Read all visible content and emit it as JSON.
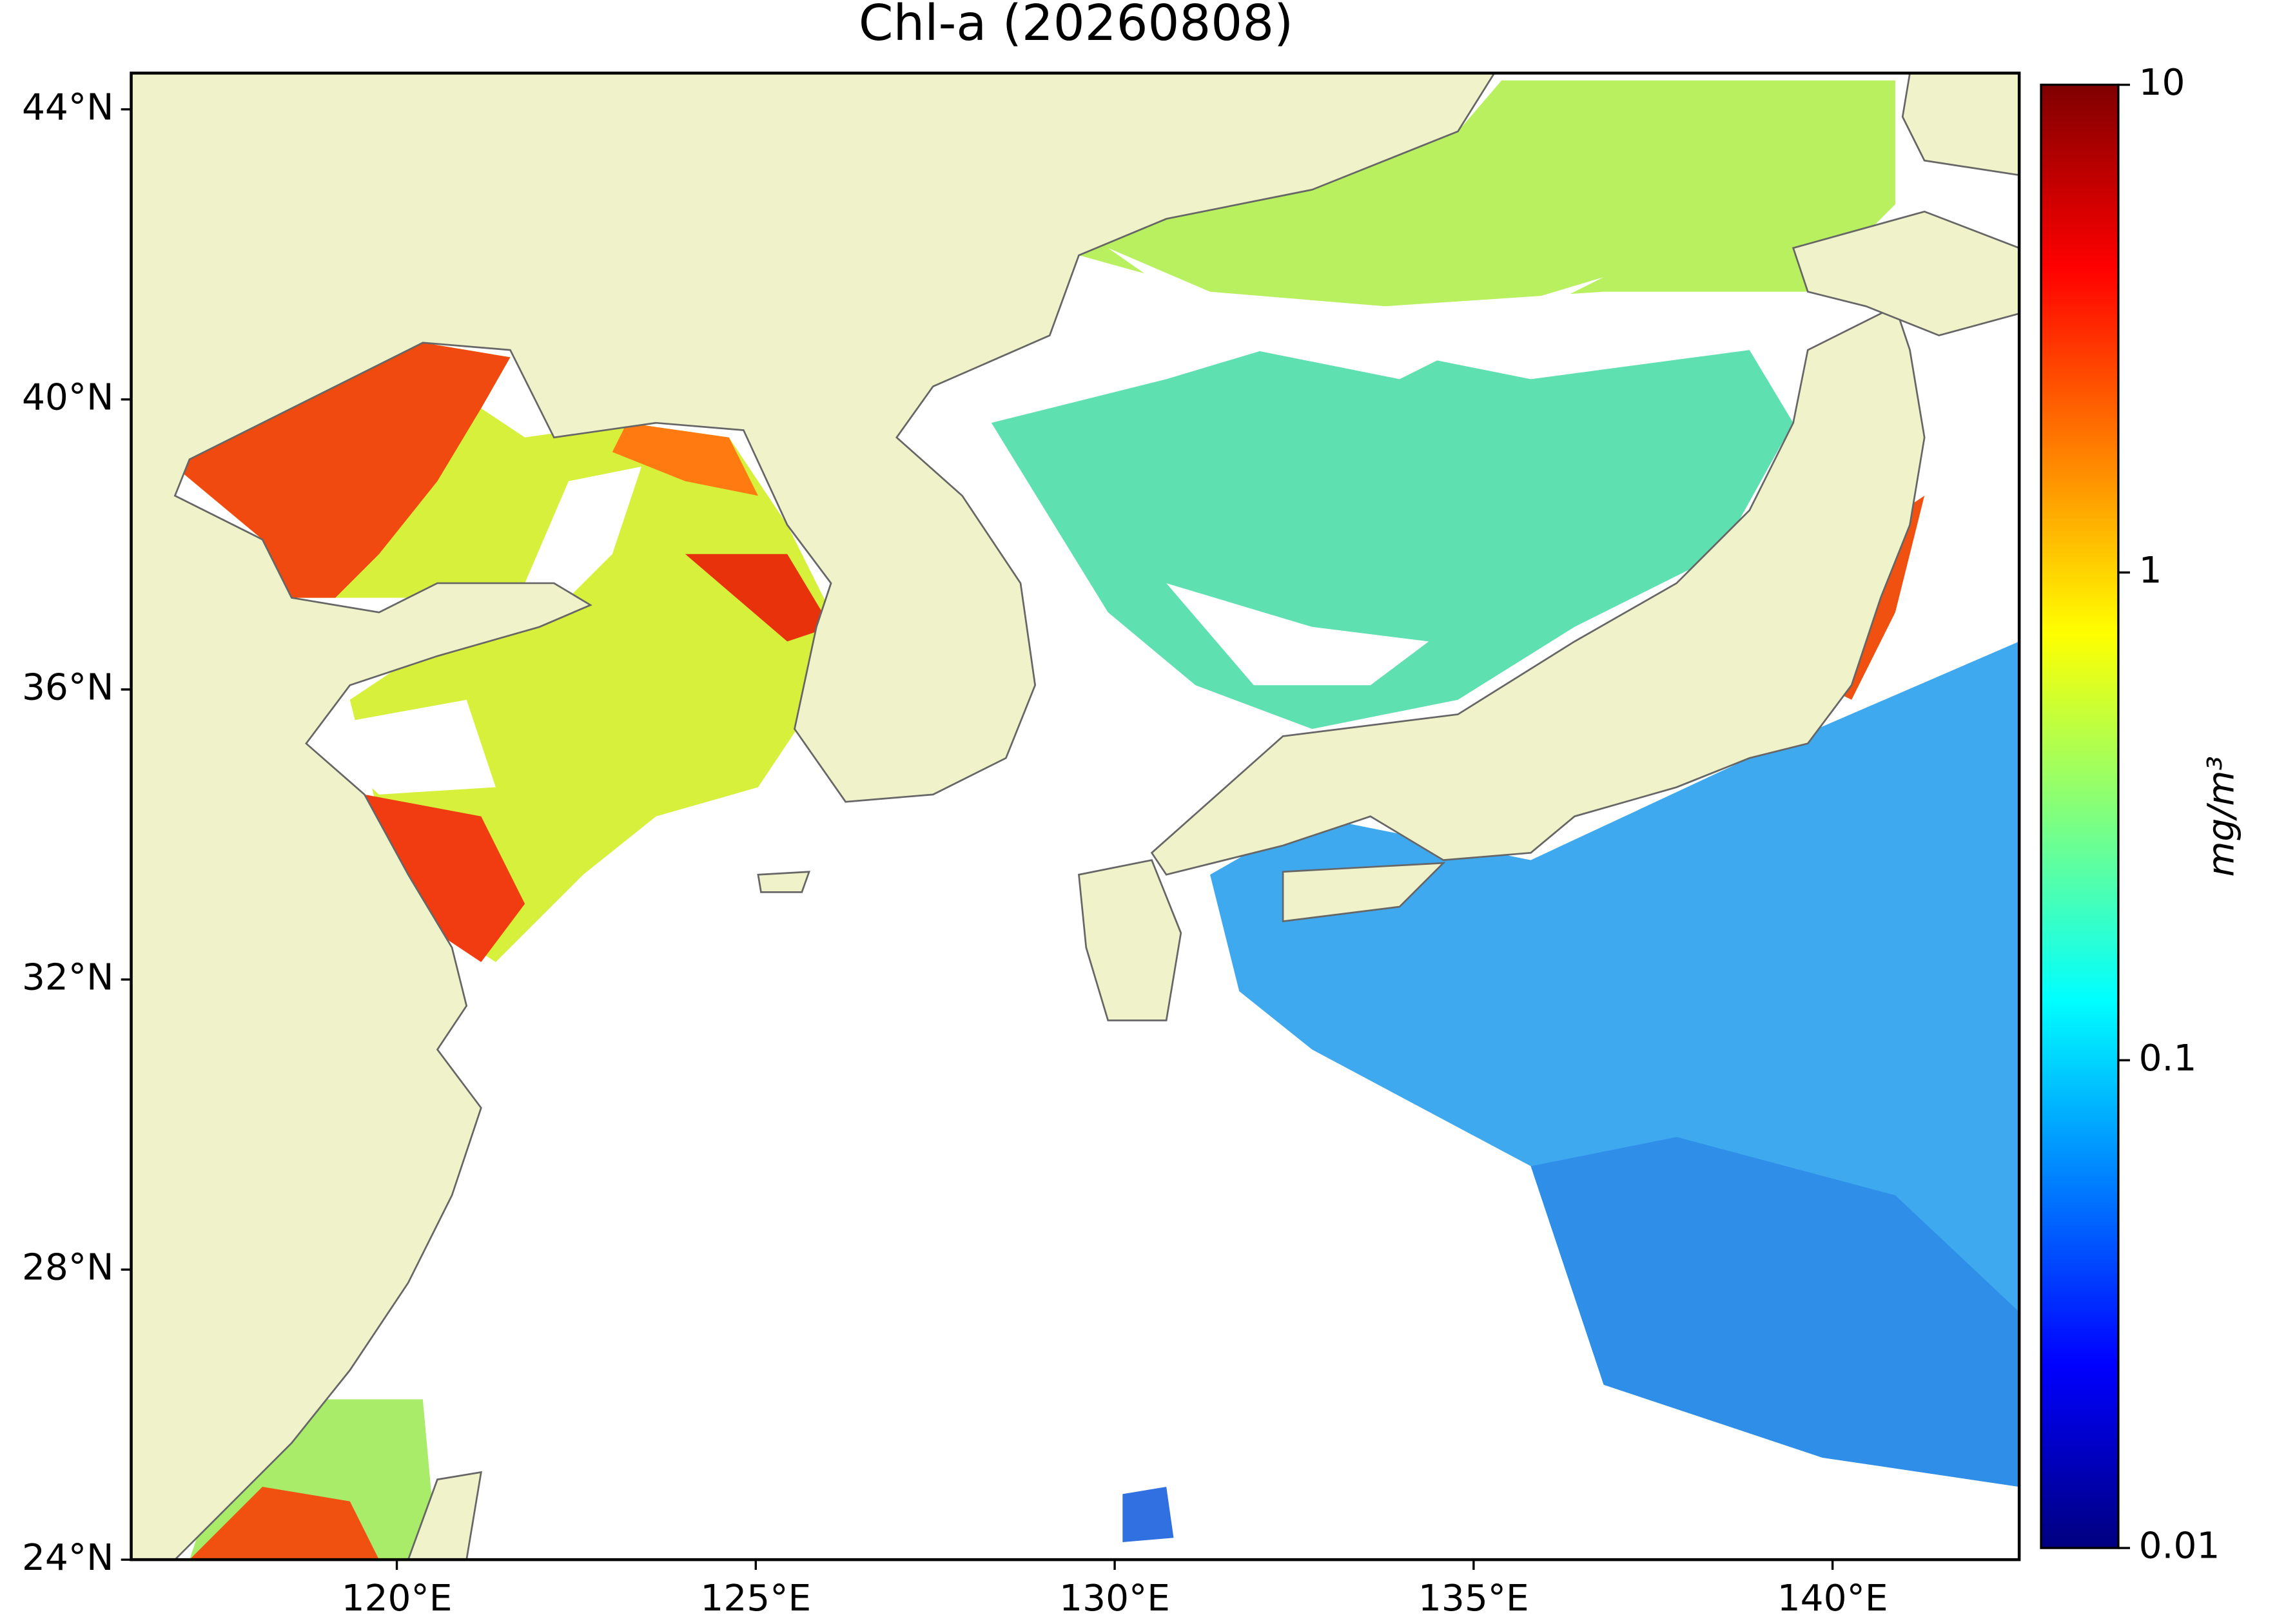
{
  "chart_data": {
    "type": "map",
    "title": "Chl-a (20260808)",
    "xlim": [
      116.3,
      142.6
    ],
    "ylim": [
      24,
      44.5
    ],
    "xticks": [
      {
        "value": 120,
        "label": "120°E"
      },
      {
        "value": 125,
        "label": "125°E"
      },
      {
        "value": 130,
        "label": "130°E"
      },
      {
        "value": 135,
        "label": "135°E"
      },
      {
        "value": 140,
        "label": "140°E"
      }
    ],
    "yticks": [
      {
        "value": 24,
        "label": "24°N"
      },
      {
        "value": 28,
        "label": "28°N"
      },
      {
        "value": 32,
        "label": "32°N"
      },
      {
        "value": 36,
        "label": "36°N"
      },
      {
        "value": 40,
        "label": "40°N"
      },
      {
        "value": 44,
        "label": "44°N"
      }
    ],
    "colorbar": {
      "label": "mg/m³",
      "colormap": "jet",
      "scale": "log",
      "lim": [
        0.01,
        10
      ],
      "ticks": [
        0.01,
        0.1,
        1,
        10
      ]
    }
  }
}
